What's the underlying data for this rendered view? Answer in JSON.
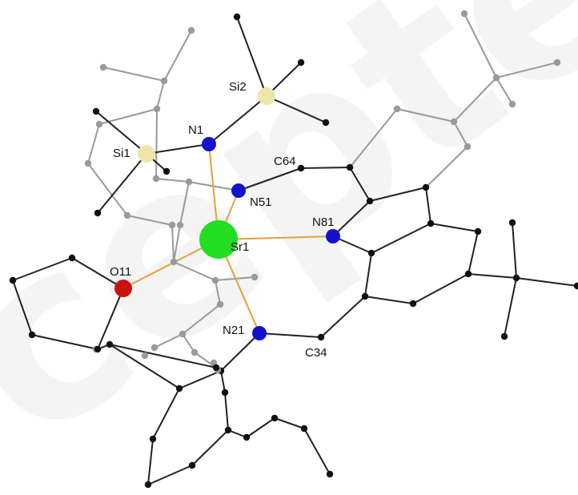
{
  "watermark": "cepted Ma",
  "colors": {
    "background": "#ffffff",
    "bond_dark": "#222222",
    "bond_light": "#999999",
    "bond_coord": "#e2a23a",
    "carbon_dark": "#111111",
    "carbon_light": "#9a9a9a",
    "nitrogen": "#1212cc",
    "oxygen": "#cc1111",
    "silicon": "#ede6a8",
    "strontium": "#22dd22"
  },
  "labels": [
    {
      "id": "Sr1",
      "text": "Sr1"
    },
    {
      "id": "N1",
      "text": "N1"
    },
    {
      "id": "N51",
      "text": "N51"
    },
    {
      "id": "N81",
      "text": "N81"
    },
    {
      "id": "N21",
      "text": "N21"
    },
    {
      "id": "O11",
      "text": "O11"
    },
    {
      "id": "Si1",
      "text": "Si1"
    },
    {
      "id": "Si2",
      "text": "Si2"
    },
    {
      "id": "C64",
      "text": "C64"
    },
    {
      "id": "C34",
      "text": "C34"
    }
  ]
}
